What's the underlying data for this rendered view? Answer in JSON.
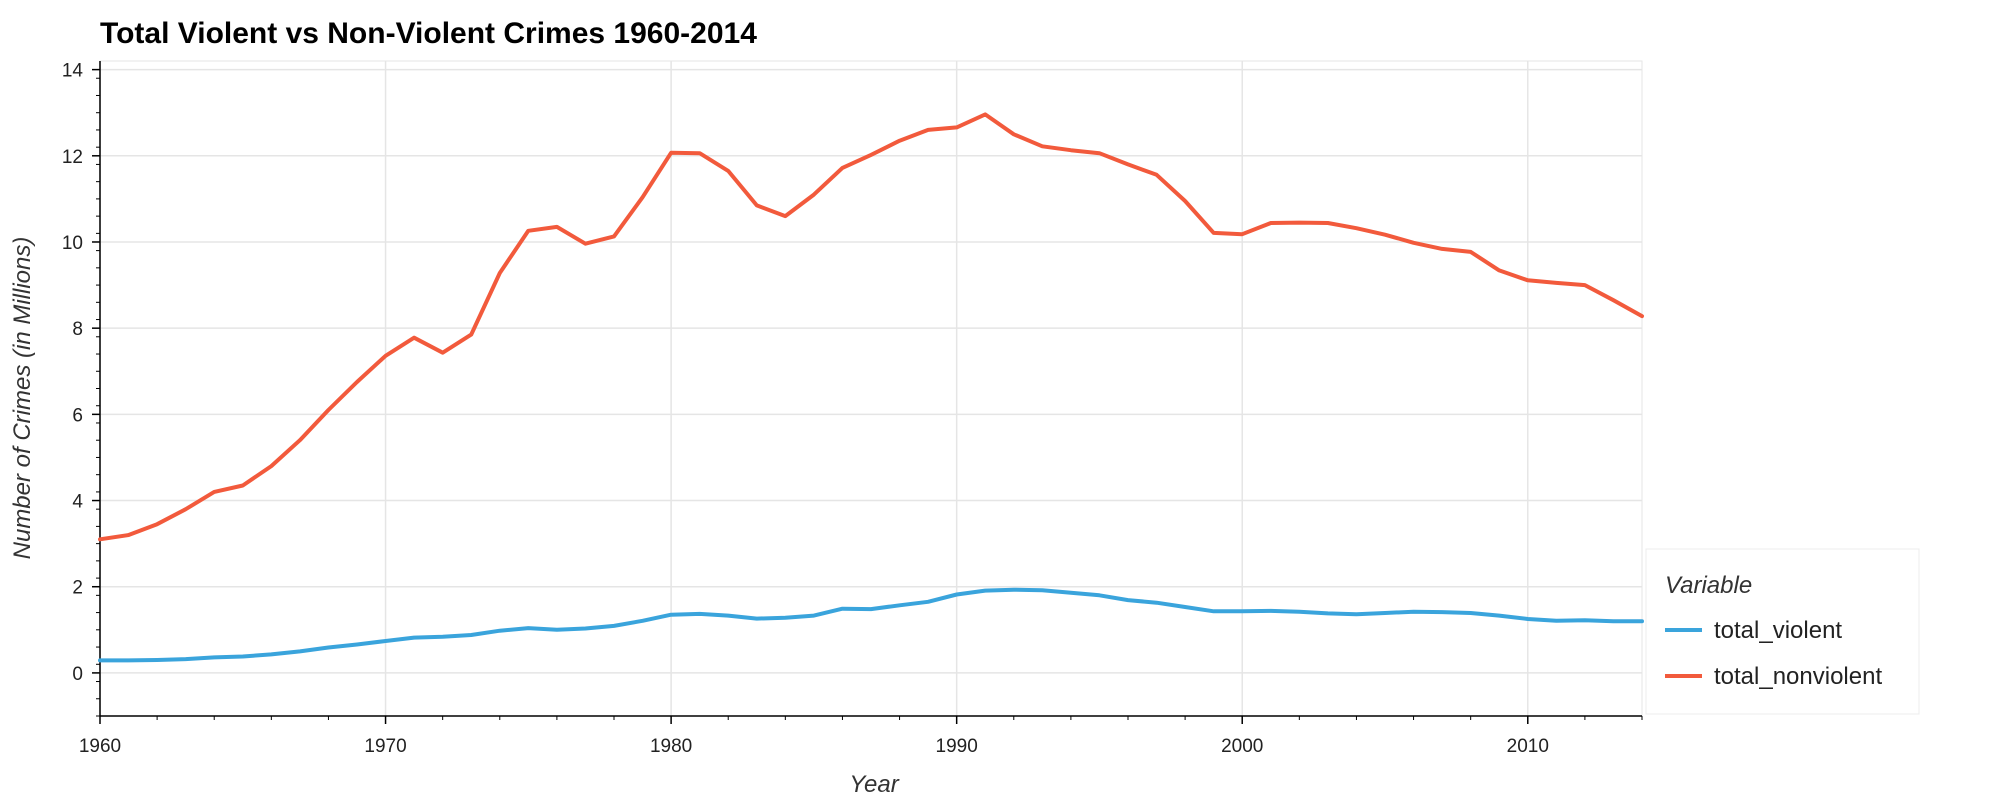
{
  "chart_data": {
    "type": "line",
    "title": "Total Violent vs Non-Violent Crimes 1960-2014",
    "xlabel": "Year",
    "ylabel": "Number of Crimes (in Millions)",
    "xlim": [
      1960,
      2014
    ],
    "ylim": [
      -1,
      14.2
    ],
    "xticks": [
      1960,
      1970,
      1980,
      1990,
      2000,
      2010
    ],
    "yticks": [
      0,
      2,
      4,
      6,
      8,
      10,
      12,
      14
    ],
    "grid": true,
    "legend": {
      "title": "Variable",
      "position": "bottom-right-outside"
    },
    "x": [
      1960,
      1961,
      1962,
      1963,
      1964,
      1965,
      1966,
      1967,
      1968,
      1969,
      1970,
      1971,
      1972,
      1973,
      1974,
      1975,
      1976,
      1977,
      1978,
      1979,
      1980,
      1981,
      1982,
      1983,
      1984,
      1985,
      1986,
      1987,
      1988,
      1989,
      1990,
      1991,
      1992,
      1993,
      1994,
      1995,
      1996,
      1997,
      1998,
      1999,
      2000,
      2001,
      2002,
      2003,
      2004,
      2005,
      2006,
      2007,
      2008,
      2009,
      2010,
      2011,
      2012,
      2013,
      2014
    ],
    "series": [
      {
        "name": "total_violent",
        "color": "#3aa4dc",
        "values": [
          0.29,
          0.29,
          0.3,
          0.32,
          0.36,
          0.38,
          0.43,
          0.5,
          0.59,
          0.66,
          0.74,
          0.82,
          0.84,
          0.88,
          0.98,
          1.04,
          1.0,
          1.03,
          1.09,
          1.21,
          1.35,
          1.37,
          1.33,
          1.26,
          1.28,
          1.33,
          1.49,
          1.48,
          1.57,
          1.65,
          1.82,
          1.91,
          1.93,
          1.92,
          1.86,
          1.8,
          1.69,
          1.63,
          1.53,
          1.43,
          1.43,
          1.44,
          1.42,
          1.38,
          1.36,
          1.39,
          1.42,
          1.41,
          1.39,
          1.33,
          1.25,
          1.21,
          1.22,
          1.2,
          1.2
        ]
      },
      {
        "name": "total_nonviolent",
        "color": "#f25a3c",
        "values": [
          3.1,
          3.2,
          3.45,
          3.8,
          4.2,
          4.35,
          4.8,
          5.4,
          6.1,
          6.75,
          7.36,
          7.78,
          7.43,
          7.85,
          9.28,
          10.26,
          10.35,
          9.96,
          10.13,
          11.04,
          12.07,
          12.06,
          11.65,
          10.85,
          10.6,
          11.1,
          11.72,
          12.02,
          12.35,
          12.6,
          12.66,
          12.96,
          12.5,
          12.22,
          12.13,
          12.06,
          11.8,
          11.56,
          10.95,
          10.21,
          10.18,
          10.44,
          10.45,
          10.44,
          10.32,
          10.17,
          9.98,
          9.84,
          9.77,
          9.34,
          9.11,
          9.05,
          9.0,
          8.65,
          8.28
        ]
      }
    ]
  }
}
